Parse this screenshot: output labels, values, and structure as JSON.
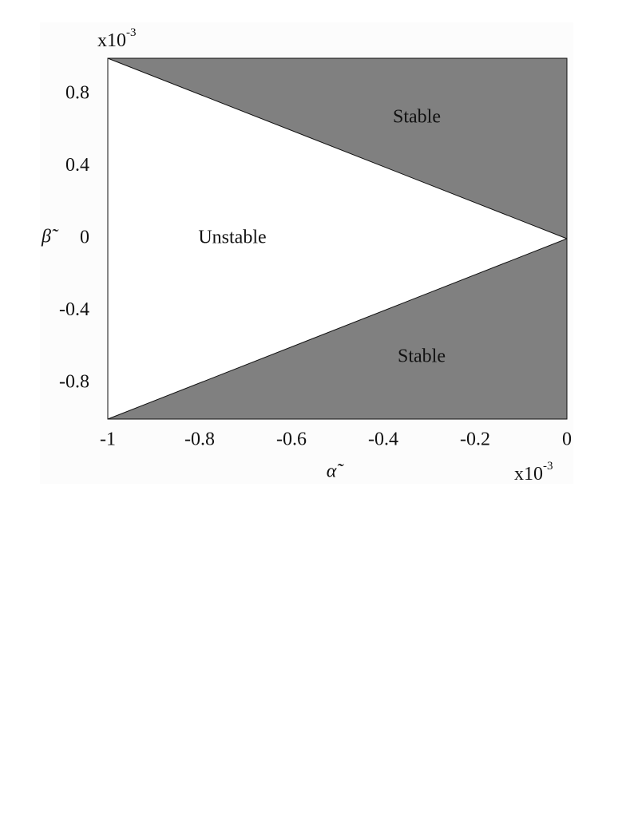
{
  "chart_data": {
    "type": "area",
    "x_label": "α̃",
    "y_label": "β̃",
    "x_scale_label": {
      "base": "x10",
      "exponent": "-3"
    },
    "y_scale_label": {
      "base": "x10",
      "exponent": "-3"
    },
    "xlim": [
      -1,
      0
    ],
    "ylim": [
      -1,
      1
    ],
    "xticks": [
      -1,
      -0.8,
      -0.6,
      -0.4,
      -0.2,
      0
    ],
    "yticks": [
      -0.8,
      -0.4,
      0,
      0.4,
      0.8
    ],
    "grid": false,
    "x": [
      -1,
      0
    ],
    "series": [
      {
        "color": "#808080",
        "fill_to": "top",
        "values": [
          1,
          0
        ]
      },
      {
        "color": "#808080",
        "fill_to": "bottom",
        "values": [
          -1,
          0
        ]
      }
    ],
    "annotations": [
      "Stable",
      "Stable",
      "Unstable"
    ]
  }
}
